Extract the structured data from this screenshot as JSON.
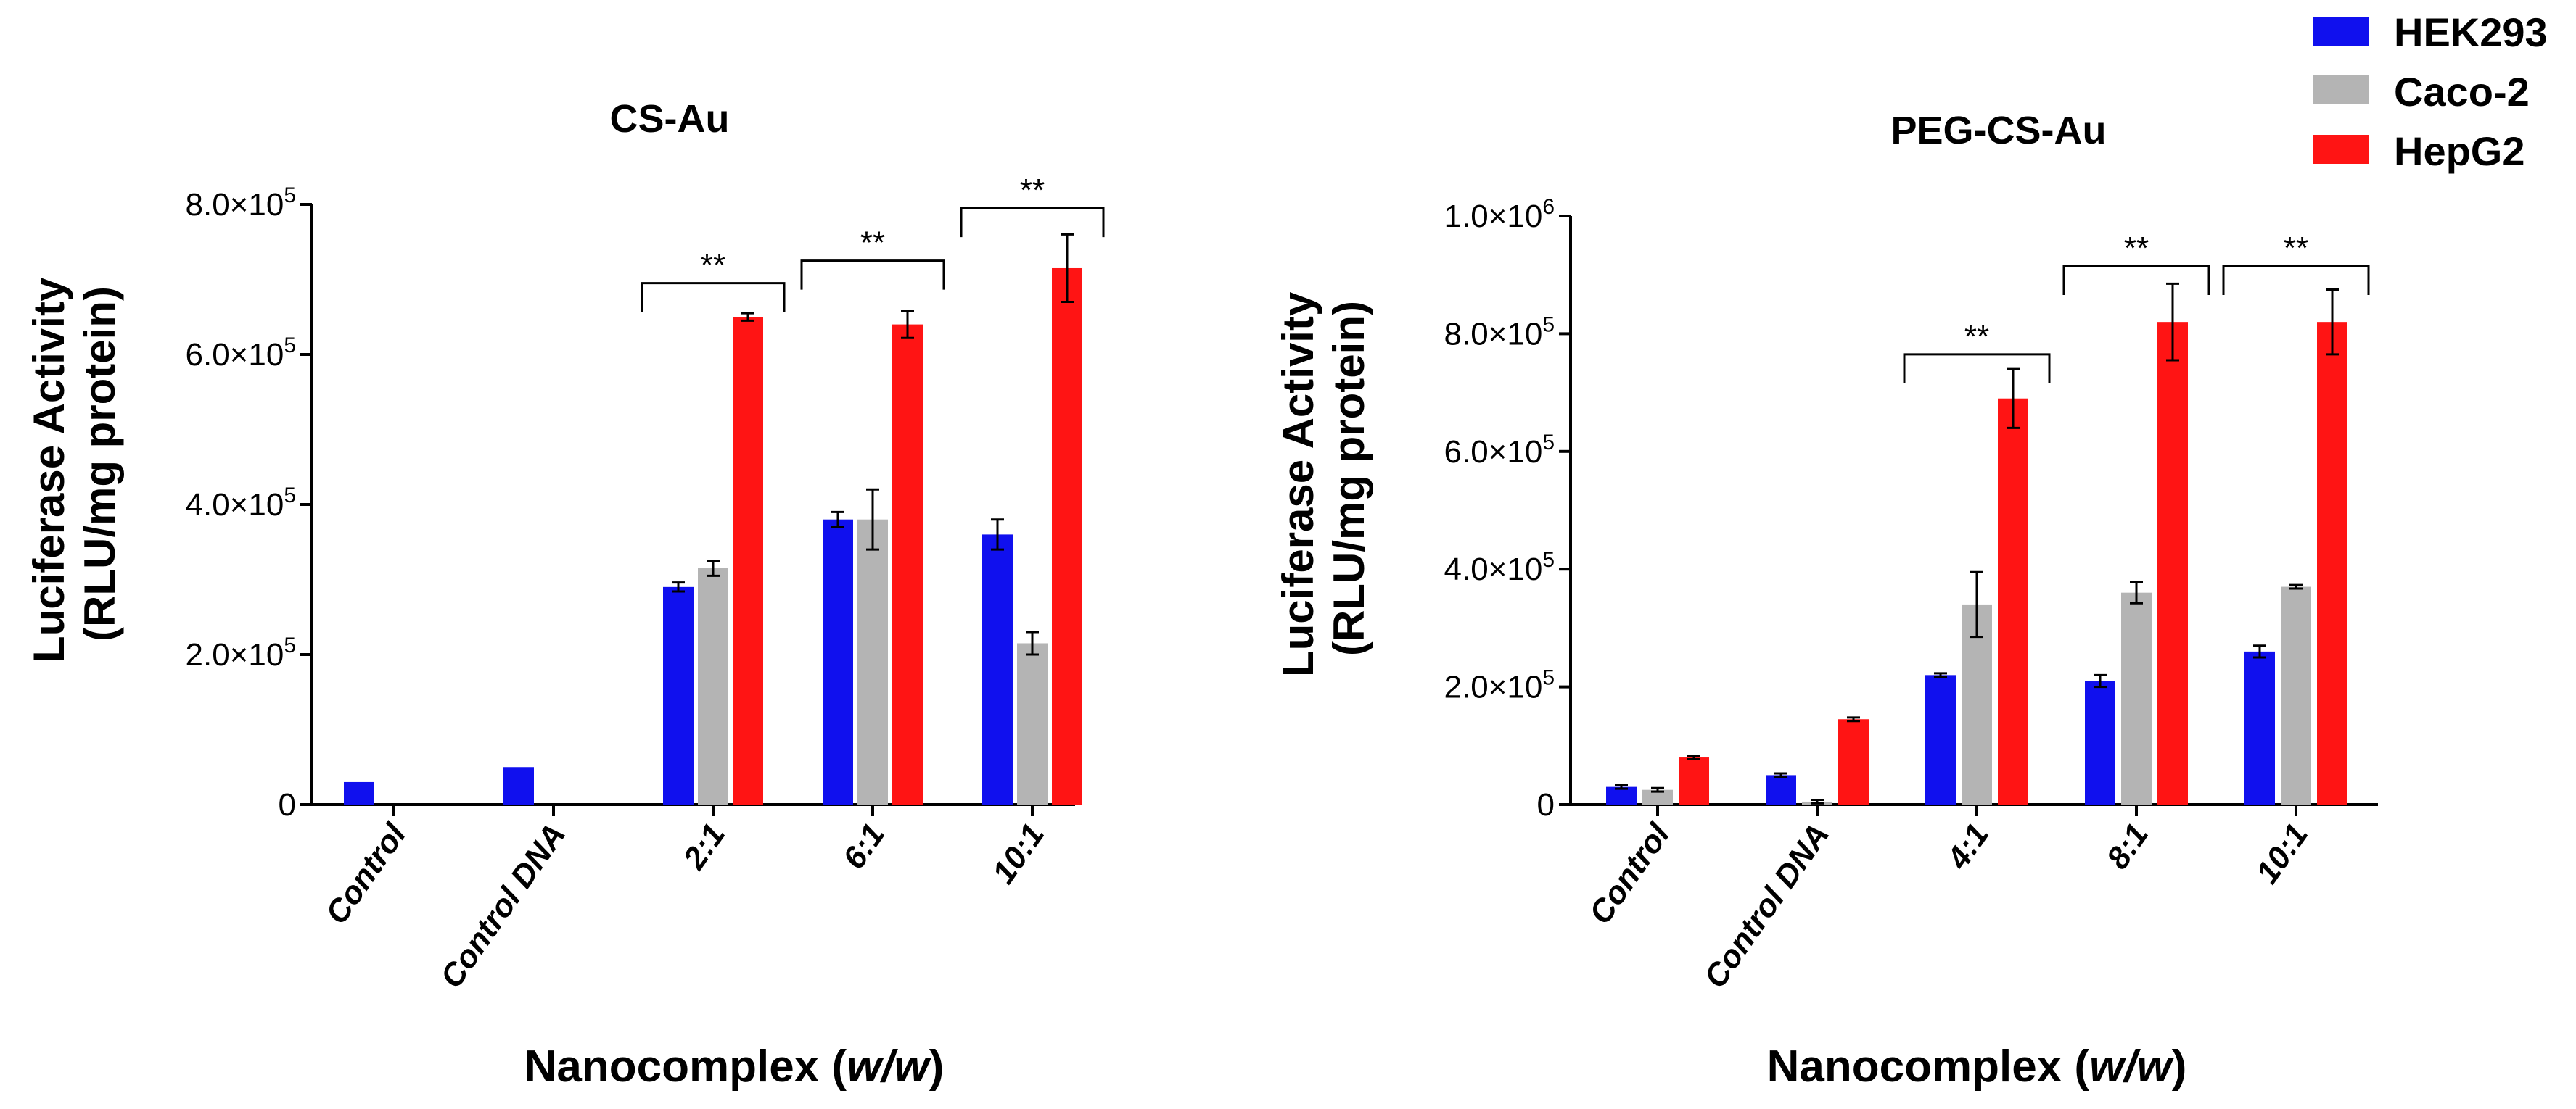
{
  "figure": {
    "legend": [
      {
        "name": "HEK293",
        "color": "#1010ee"
      },
      {
        "name": "Caco-2",
        "color": "#b4b4b4"
      },
      {
        "name": "HepG2",
        "color": "#ff1414"
      }
    ]
  },
  "chart_data": [
    {
      "type": "bar",
      "title": "CS-Au",
      "ylabel_line1": "Luciferase Activity",
      "ylabel_line2": "(RLU/mg protein)",
      "xlabel_prefix": "Nanocomplex (",
      "xlabel_italic": "w/w",
      "xlabel_suffix": ")",
      "ylim": [
        0,
        800000
      ],
      "yticks": [
        {
          "value": 0,
          "mant": "0",
          "exp": ""
        },
        {
          "value": 200000,
          "mant": "2.0×10",
          "exp": "5"
        },
        {
          "value": 400000,
          "mant": "4.0×10",
          "exp": "5"
        },
        {
          "value": 600000,
          "mant": "6.0×10",
          "exp": "5"
        },
        {
          "value": 800000,
          "mant": "8.0×10",
          "exp": "5"
        }
      ],
      "categories": [
        "Control",
        "Control DNA",
        "2:1",
        "6:1",
        "10:1"
      ],
      "series": [
        {
          "name": "HEK293",
          "color": "#1010ee",
          "values": [
            30000,
            50000,
            290000,
            380000,
            360000
          ],
          "errors": [
            0,
            0,
            6000,
            10000,
            20000
          ]
        },
        {
          "name": "Caco-2",
          "color": "#b4b4b4",
          "values": [
            0,
            0,
            315000,
            380000,
            215000
          ],
          "errors": [
            0,
            0,
            10000,
            40000,
            15000
          ]
        },
        {
          "name": "HepG2",
          "color": "#ff1414",
          "values": [
            0,
            0,
            650000,
            640000,
            715000
          ],
          "errors": [
            0,
            0,
            5000,
            18000,
            45000
          ]
        }
      ],
      "significance": [
        {
          "category": "2:1",
          "label": "**",
          "y": 695000
        },
        {
          "category": "6:1",
          "label": "**",
          "y": 725000
        },
        {
          "category": "10:1",
          "label": "**",
          "y": 795000
        }
      ]
    },
    {
      "type": "bar",
      "title": "PEG-CS-Au",
      "ylabel_line1": "Luciferase Activity",
      "ylabel_line2": "(RLU/mg protein)",
      "xlabel_prefix": "Nanocomplex (",
      "xlabel_italic": "w/w",
      "xlabel_suffix": ")",
      "ylim": [
        0,
        1000000
      ],
      "yticks": [
        {
          "value": 0,
          "mant": "0",
          "exp": ""
        },
        {
          "value": 200000,
          "mant": "2.0×10",
          "exp": "5"
        },
        {
          "value": 400000,
          "mant": "4.0×10",
          "exp": "5"
        },
        {
          "value": 600000,
          "mant": "6.0×10",
          "exp": "5"
        },
        {
          "value": 800000,
          "mant": "8.0×10",
          "exp": "5"
        },
        {
          "value": 1000000,
          "mant": "1.0×10",
          "exp": "6"
        }
      ],
      "categories": [
        "Control",
        "Control DNA",
        "4:1",
        "8:1",
        "10:1"
      ],
      "series": [
        {
          "name": "HEK293",
          "color": "#1010ee",
          "values": [
            30000,
            50000,
            220000,
            210000,
            260000
          ],
          "errors": [
            3000,
            3000,
            3000,
            10000,
            10000
          ]
        },
        {
          "name": "Caco-2",
          "color": "#b4b4b4",
          "values": [
            25000,
            5000,
            340000,
            360000,
            370000
          ],
          "errors": [
            3000,
            3000,
            55000,
            18000,
            3000
          ]
        },
        {
          "name": "HepG2",
          "color": "#ff1414",
          "values": [
            80000,
            145000,
            690000,
            820000,
            820000
          ],
          "errors": [
            3000,
            3000,
            50000,
            65000,
            55000
          ]
        }
      ],
      "significance": [
        {
          "category": "4:1",
          "label": "**",
          "y": 765000
        },
        {
          "category": "8:1",
          "label": "**",
          "y": 915000
        },
        {
          "category": "10:1",
          "label": "**",
          "y": 915000
        }
      ]
    }
  ]
}
